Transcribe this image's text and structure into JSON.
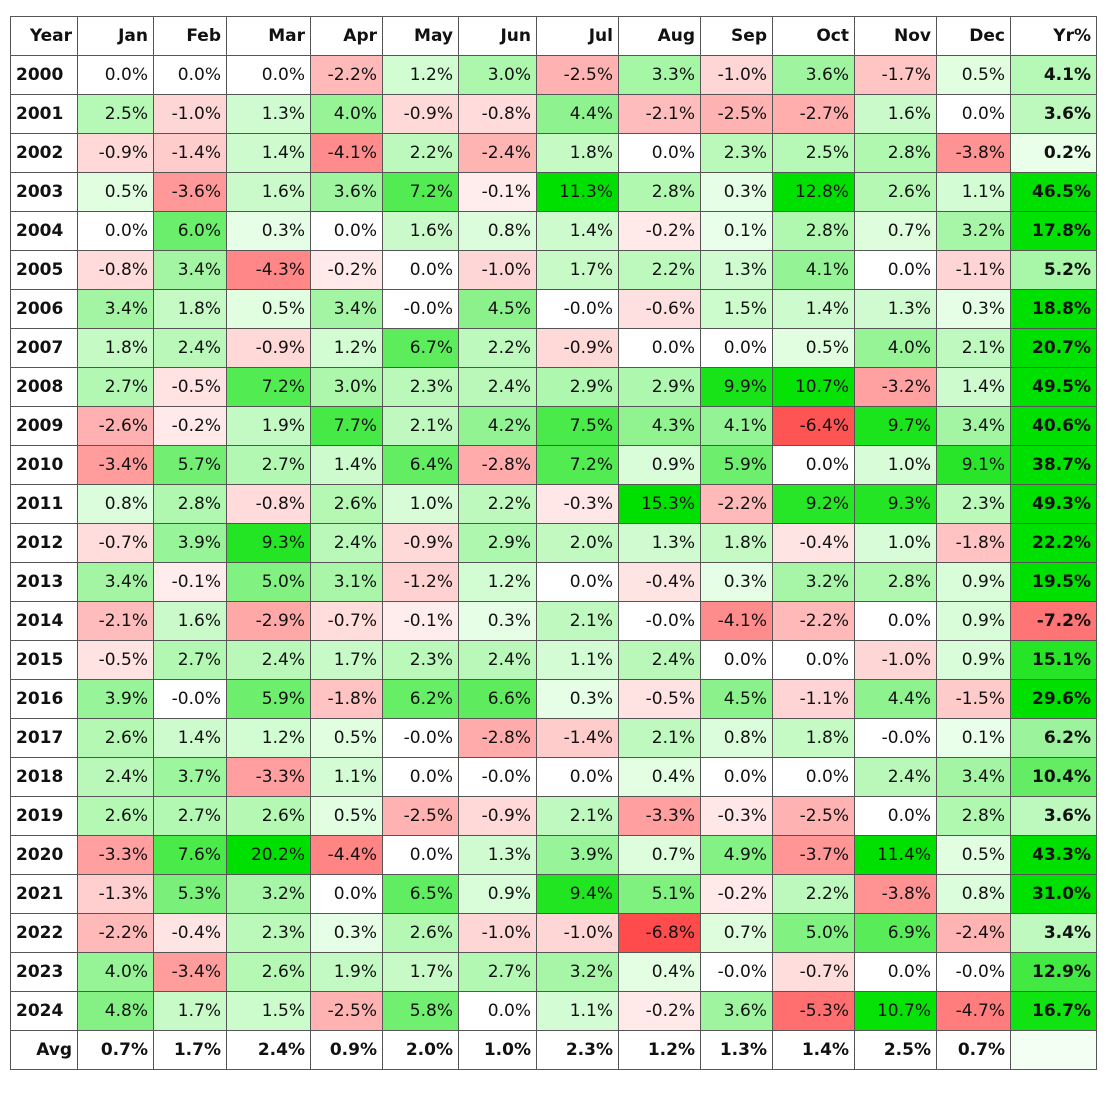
{
  "table": {
    "header": [
      "Year",
      "Jan",
      "Feb",
      "Mar",
      "Apr",
      "May",
      "Jun",
      "Jul",
      "Aug",
      "Sep",
      "Oct",
      "Nov",
      "Dec",
      "Yr%"
    ],
    "rows": [
      [
        "2000",
        "0.0%",
        "0.0%",
        "0.0%",
        "-2.2%",
        "1.2%",
        "3.0%",
        "-2.5%",
        "3.3%",
        "-1.0%",
        "3.6%",
        "-1.7%",
        "0.5%",
        "4.1%"
      ],
      [
        "2001",
        "2.5%",
        "-1.0%",
        "1.3%",
        "4.0%",
        "-0.9%",
        "-0.8%",
        "4.4%",
        "-2.1%",
        "-2.5%",
        "-2.7%",
        "1.6%",
        "0.0%",
        "3.6%"
      ],
      [
        "2002",
        "-0.9%",
        "-1.4%",
        "1.4%",
        "-4.1%",
        "2.2%",
        "-2.4%",
        "1.8%",
        "0.0%",
        "2.3%",
        "2.5%",
        "2.8%",
        "-3.8%",
        "0.2%"
      ],
      [
        "2003",
        "0.5%",
        "-3.6%",
        "1.6%",
        "3.6%",
        "7.2%",
        "-0.1%",
        "11.3%",
        "2.8%",
        "0.3%",
        "12.8%",
        "2.6%",
        "1.1%",
        "46.5%"
      ],
      [
        "2004",
        "0.0%",
        "6.0%",
        "0.3%",
        "0.0%",
        "1.6%",
        "0.8%",
        "1.4%",
        "-0.2%",
        "0.1%",
        "2.8%",
        "0.7%",
        "3.2%",
        "17.8%"
      ],
      [
        "2005",
        "-0.8%",
        "3.4%",
        "-4.3%",
        "-0.2%",
        "0.0%",
        "-1.0%",
        "1.7%",
        "2.2%",
        "1.3%",
        "4.1%",
        "0.0%",
        "-1.1%",
        "5.2%"
      ],
      [
        "2006",
        "3.4%",
        "1.8%",
        "0.5%",
        "3.4%",
        "-0.0%",
        "4.5%",
        "-0.0%",
        "-0.6%",
        "1.5%",
        "1.4%",
        "1.3%",
        "0.3%",
        "18.8%"
      ],
      [
        "2007",
        "1.8%",
        "2.4%",
        "-0.9%",
        "1.2%",
        "6.7%",
        "2.2%",
        "-0.9%",
        "0.0%",
        "0.0%",
        "0.5%",
        "4.0%",
        "2.1%",
        "20.7%"
      ],
      [
        "2008",
        "2.7%",
        "-0.5%",
        "7.2%",
        "3.0%",
        "2.3%",
        "2.4%",
        "2.9%",
        "2.9%",
        "9.9%",
        "10.7%",
        "-3.2%",
        "1.4%",
        "49.5%"
      ],
      [
        "2009",
        "-2.6%",
        "-0.2%",
        "1.9%",
        "7.7%",
        "2.1%",
        "4.2%",
        "7.5%",
        "4.3%",
        "4.1%",
        "-6.4%",
        "9.7%",
        "3.4%",
        "40.6%"
      ],
      [
        "2010",
        "-3.4%",
        "5.7%",
        "2.7%",
        "1.4%",
        "6.4%",
        "-2.8%",
        "7.2%",
        "0.9%",
        "5.9%",
        "0.0%",
        "1.0%",
        "9.1%",
        "38.7%"
      ],
      [
        "2011",
        "0.8%",
        "2.8%",
        "-0.8%",
        "2.6%",
        "1.0%",
        "2.2%",
        "-0.3%",
        "15.3%",
        "-2.2%",
        "9.2%",
        "9.3%",
        "2.3%",
        "49.3%"
      ],
      [
        "2012",
        "-0.7%",
        "3.9%",
        "9.3%",
        "2.4%",
        "-0.9%",
        "2.9%",
        "2.0%",
        "1.3%",
        "1.8%",
        "-0.4%",
        "1.0%",
        "-1.8%",
        "22.2%"
      ],
      [
        "2013",
        "3.4%",
        "-0.1%",
        "5.0%",
        "3.1%",
        "-1.2%",
        "1.2%",
        "0.0%",
        "-0.4%",
        "0.3%",
        "3.2%",
        "2.8%",
        "0.9%",
        "19.5%"
      ],
      [
        "2014",
        "-2.1%",
        "1.6%",
        "-2.9%",
        "-0.7%",
        "-0.1%",
        "0.3%",
        "2.1%",
        "-0.0%",
        "-4.1%",
        "-2.2%",
        "0.0%",
        "0.9%",
        "-7.2%"
      ],
      [
        "2015",
        "-0.5%",
        "2.7%",
        "2.4%",
        "1.7%",
        "2.3%",
        "2.4%",
        "1.1%",
        "2.4%",
        "0.0%",
        "0.0%",
        "-1.0%",
        "0.9%",
        "15.1%"
      ],
      [
        "2016",
        "3.9%",
        "-0.0%",
        "5.9%",
        "-1.8%",
        "6.2%",
        "6.6%",
        "0.3%",
        "-0.5%",
        "4.5%",
        "-1.1%",
        "4.4%",
        "-1.5%",
        "29.6%"
      ],
      [
        "2017",
        "2.6%",
        "1.4%",
        "1.2%",
        "0.5%",
        "-0.0%",
        "-2.8%",
        "-1.4%",
        "2.1%",
        "0.8%",
        "1.8%",
        "-0.0%",
        "0.1%",
        "6.2%"
      ],
      [
        "2018",
        "2.4%",
        "3.7%",
        "-3.3%",
        "1.1%",
        "0.0%",
        "-0.0%",
        "0.0%",
        "0.4%",
        "0.0%",
        "0.0%",
        "2.4%",
        "3.4%",
        "10.4%"
      ],
      [
        "2019",
        "2.6%",
        "2.7%",
        "2.6%",
        "0.5%",
        "-2.5%",
        "-0.9%",
        "2.1%",
        "-3.3%",
        "-0.3%",
        "-2.5%",
        "0.0%",
        "2.8%",
        "3.6%"
      ],
      [
        "2020",
        "-3.3%",
        "7.6%",
        "20.2%",
        "-4.4%",
        "0.0%",
        "1.3%",
        "3.9%",
        "0.7%",
        "4.9%",
        "-3.7%",
        "11.4%",
        "0.5%",
        "43.3%"
      ],
      [
        "2021",
        "-1.3%",
        "5.3%",
        "3.2%",
        "0.0%",
        "6.5%",
        "0.9%",
        "9.4%",
        "5.1%",
        "-0.2%",
        "2.2%",
        "-3.8%",
        "0.8%",
        "31.0%"
      ],
      [
        "2022",
        "-2.2%",
        "-0.4%",
        "2.3%",
        "0.3%",
        "2.6%",
        "-1.0%",
        "-1.0%",
        "-6.8%",
        "0.7%",
        "5.0%",
        "6.9%",
        "-2.4%",
        "3.4%"
      ],
      [
        "2023",
        "4.0%",
        "-3.4%",
        "2.6%",
        "1.9%",
        "1.7%",
        "2.7%",
        "3.2%",
        "0.4%",
        "-0.0%",
        "-0.7%",
        "0.0%",
        "-0.0%",
        "12.9%"
      ],
      [
        "2024",
        "4.8%",
        "1.7%",
        "1.5%",
        "-2.5%",
        "5.8%",
        "0.0%",
        "1.1%",
        "-0.2%",
        "3.6%",
        "-5.3%",
        "10.7%",
        "-4.7%",
        "16.7%"
      ]
    ],
    "footer": [
      "Avg",
      "0.7%",
      "1.7%",
      "2.4%",
      "0.9%",
      "2.0%",
      "1.0%",
      "2.3%",
      "1.2%",
      "1.3%",
      "1.4%",
      "2.5%",
      "0.7%"
    ]
  }
}
